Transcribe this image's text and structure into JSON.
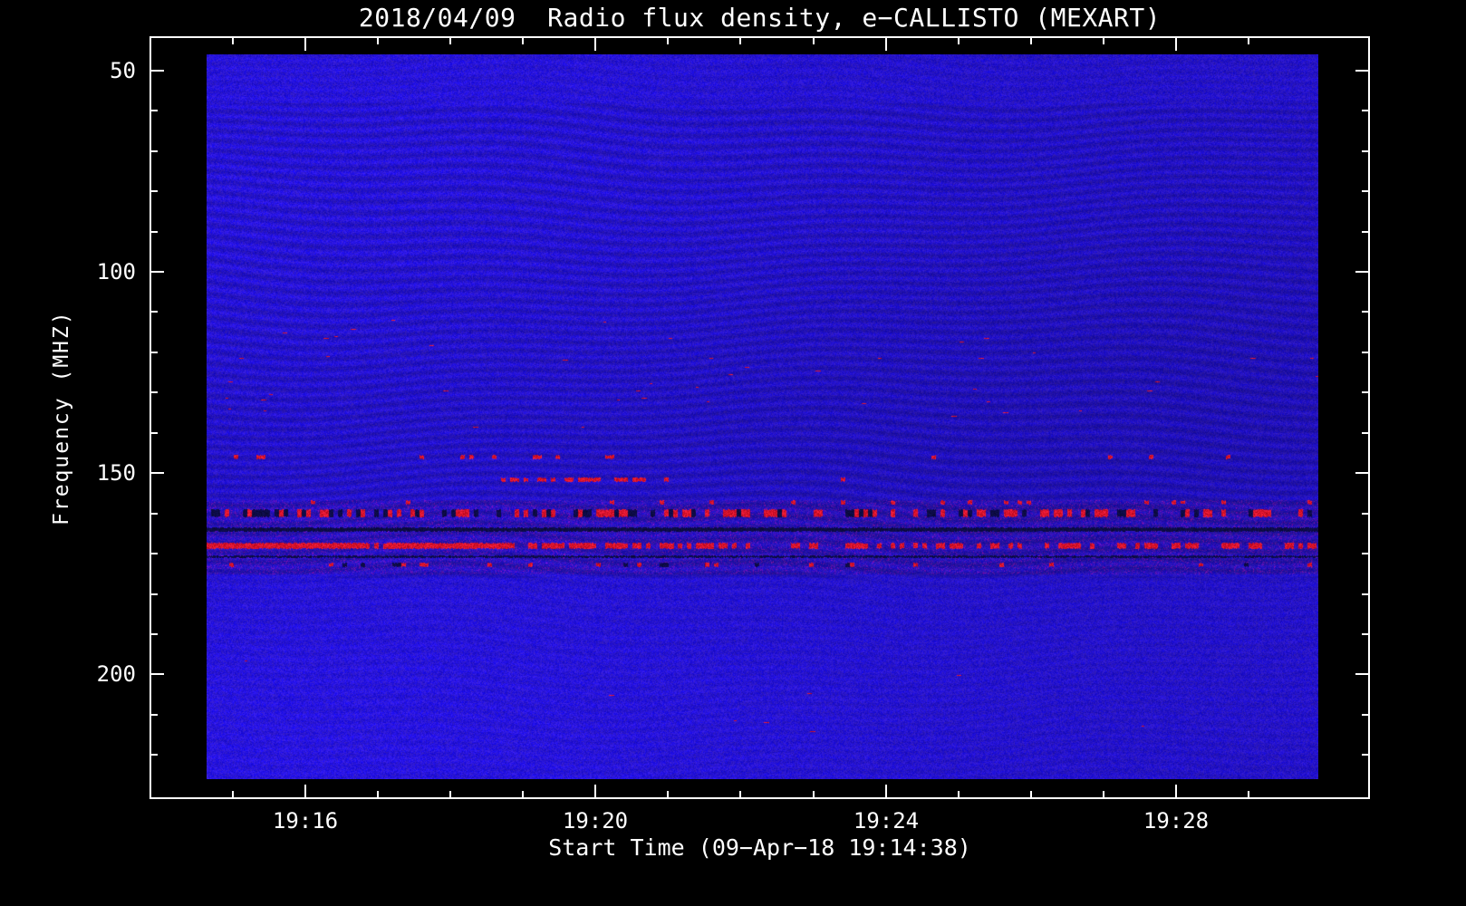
{
  "figure": {
    "background": "#000000",
    "text_color": "#ffffff"
  },
  "chart_data": {
    "type": "heatmap",
    "title": "2018/04/09  Radio flux density, e−CALLISTO (MEXART)",
    "xlabel": "Start Time (09−Apr−18 19:14:38)",
    "ylabel": "Frequency (MHZ)",
    "instrument": "e-CALLISTO (MEXART)",
    "date": "2018/04/09",
    "x_axis": {
      "start_time": "19:14:38",
      "duration_s": 920,
      "major_ticks": [
        {
          "s": 82,
          "label": "19:16"
        },
        {
          "s": 322,
          "label": "19:20"
        },
        {
          "s": 562,
          "label": "19:24"
        },
        {
          "s": 802,
          "label": "19:28"
        }
      ],
      "minor_tick_interval_s": 60,
      "first_minor_s": 22
    },
    "y_axis": {
      "unit": "MHz",
      "min": 46,
      "max": 226,
      "inverted": true,
      "major_ticks": [
        50,
        100,
        150,
        200
      ],
      "minor_tick_interval": 10
    },
    "colormap": {
      "background_blue": "#2323dc",
      "wave_dark_blue": "#1414a8",
      "interference_red": "#e01800",
      "dark_line_navy": "#0a0a50"
    },
    "interference_bands": [
      {
        "freq_mhz": 145.8,
        "width_mhz": 1.0,
        "density": 0.1,
        "color": "red"
      },
      {
        "freq_mhz": 151.6,
        "width_mhz": 0.9,
        "density": 0.3,
        "color": "red",
        "span": [
          0.26,
          0.42
        ]
      },
      {
        "freq_mhz": 157.2,
        "width_mhz": 0.8,
        "density": 0.06,
        "color": "red"
      },
      {
        "freq_mhz": 159.9,
        "width_mhz": 1.6,
        "density": 0.5,
        "color": "red-dark"
      },
      {
        "freq_mhz": 163.8,
        "width_mhz": 0.8,
        "density": 1.0,
        "color": "dark"
      },
      {
        "freq_mhz": 168.0,
        "width_mhz": 1.4,
        "density": 0.85,
        "density_after": 0.38,
        "split": 0.42,
        "color": "red"
      },
      {
        "freq_mhz": 170.6,
        "width_mhz": 0.6,
        "density": 1.0,
        "color": "dark"
      },
      {
        "freq_mhz": 172.6,
        "width_mhz": 0.9,
        "density": 0.12,
        "color": "red-dark"
      }
    ],
    "speckle_zones": [
      {
        "freq_range_mhz": [
          112,
          140
        ],
        "density": 0.002
      },
      {
        "freq_range_mhz": [
          196,
          215
        ],
        "density": 0.0007
      }
    ]
  }
}
